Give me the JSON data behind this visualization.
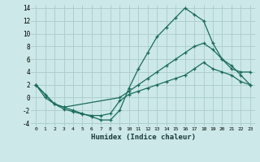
{
  "xlabel": "Humidex (Indice chaleur)",
  "bg_color": "#cce8e8",
  "grid_color": "#aacccc",
  "line_color": "#1a6b5a",
  "xlim": [
    -0.5,
    23.5
  ],
  "ylim": [
    -4.5,
    14.5
  ],
  "xticks": [
    0,
    1,
    2,
    3,
    4,
    5,
    6,
    7,
    8,
    9,
    10,
    11,
    12,
    13,
    14,
    15,
    16,
    17,
    18,
    19,
    20,
    21,
    22,
    23
  ],
  "yticks": [
    -4,
    -2,
    0,
    2,
    4,
    6,
    8,
    10,
    12,
    14
  ],
  "line1_x": [
    0,
    1,
    2,
    3,
    4,
    5,
    6,
    7,
    8,
    9,
    10,
    11,
    12,
    13,
    14,
    15,
    16,
    17,
    18,
    19,
    20,
    21,
    22,
    23
  ],
  "line1_y": [
    2,
    0,
    -1,
    -1.5,
    -2,
    -2.5,
    -3,
    -3.5,
    -3.5,
    -2,
    1.5,
    4.5,
    7,
    9.5,
    11,
    12.5,
    14,
    13,
    12,
    8.5,
    6,
    4.5,
    4,
    4
  ],
  "line2_x": [
    0,
    2,
    3,
    9,
    10,
    11,
    12,
    13,
    14,
    15,
    16,
    17,
    18,
    19,
    20,
    21,
    22,
    23
  ],
  "line2_y": [
    2,
    -1,
    -1.5,
    0,
    1.0,
    2.0,
    3.0,
    4.0,
    5.0,
    6.0,
    7.0,
    8.0,
    8.5,
    7.5,
    6.0,
    5.0,
    3.5,
    2
  ],
  "line3_x": [
    0,
    1,
    2,
    3,
    4,
    5,
    6,
    7,
    8,
    9,
    10,
    11,
    12,
    13,
    14,
    15,
    16,
    17,
    18,
    19,
    20,
    21,
    22,
    23
  ],
  "line3_y": [
    2,
    0.5,
    -1,
    -1.8,
    -2.2,
    -2.6,
    -2.8,
    -2.8,
    -2.5,
    -0.5,
    0.5,
    1.0,
    1.5,
    2.0,
    2.5,
    3.0,
    3.5,
    4.5,
    5.5,
    4.5,
    4.0,
    3.5,
    2.5,
    2
  ]
}
